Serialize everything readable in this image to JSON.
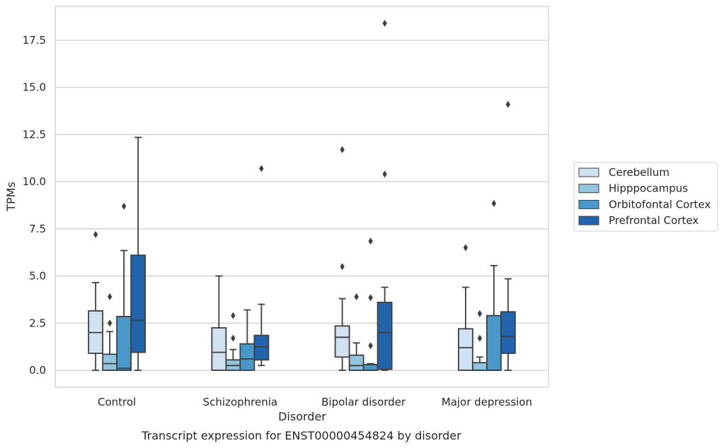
{
  "chart_data": {
    "type": "box",
    "xlabel": "Disorder",
    "ylabel": "TPMs",
    "caption": "Transcript expression for ENST00000454824 by disorder",
    "ylim": [
      -0.9,
      19.3
    ],
    "yticks": [
      "0.0",
      "2.5",
      "5.0",
      "7.5",
      "10.0",
      "12.5",
      "15.0",
      "17.5"
    ],
    "categories": [
      "Control",
      "Schizophrenia",
      "Bipolar disorder",
      "Major depression"
    ],
    "grid": "horizontal",
    "legend_position": "right",
    "series": [
      {
        "name": "Cerebellum",
        "color": "#d0e1f2",
        "boxes": [
          {
            "whislo": 0.0,
            "q1": 0.9,
            "med": 2.0,
            "q3": 3.15,
            "whishi": 4.65,
            "fliers": [
              7.2
            ]
          },
          {
            "whislo": 0.0,
            "q1": 0.0,
            "med": 0.95,
            "q3": 2.25,
            "whishi": 5.0,
            "fliers": []
          },
          {
            "whislo": 0.0,
            "q1": 0.7,
            "med": 1.75,
            "q3": 2.35,
            "whishi": 3.8,
            "fliers": [
              5.5,
              11.7
            ]
          },
          {
            "whislo": 0.0,
            "q1": 0.0,
            "med": 1.2,
            "q3": 2.2,
            "whishi": 4.4,
            "fliers": [
              6.5
            ]
          }
        ]
      },
      {
        "name": "Hipppocampus",
        "color": "#94c4df",
        "boxes": [
          {
            "whislo": 0.0,
            "q1": 0.0,
            "med": 0.35,
            "q3": 0.85,
            "whishi": 2.05,
            "fliers": [
              2.5,
              3.9
            ]
          },
          {
            "whislo": 0.0,
            "q1": 0.0,
            "med": 0.25,
            "q3": 0.55,
            "whishi": 1.1,
            "fliers": [
              1.7,
              2.9
            ]
          },
          {
            "whislo": 0.0,
            "q1": 0.0,
            "med": 0.25,
            "q3": 0.8,
            "whishi": 1.45,
            "fliers": [
              3.9
            ]
          },
          {
            "whislo": 0.0,
            "q1": 0.0,
            "med": 0.0,
            "q3": 0.4,
            "whishi": 0.7,
            "fliers": [
              1.7,
              3.0
            ]
          }
        ]
      },
      {
        "name": "Orbitofontal Cortex",
        "color": "#4a98c9",
        "boxes": [
          {
            "whislo": 0.0,
            "q1": 0.0,
            "med": 0.1,
            "q3": 2.85,
            "whishi": 6.35,
            "fliers": [
              8.7
            ]
          },
          {
            "whislo": 0.0,
            "q1": 0.0,
            "med": 0.6,
            "q3": 1.4,
            "whishi": 3.2,
            "fliers": []
          },
          {
            "whislo": 0.0,
            "q1": 0.0,
            "med": 0.0,
            "q3": 0.3,
            "whishi": 0.35,
            "fliers": [
              1.3,
              3.85,
              6.85
            ]
          },
          {
            "whislo": 0.0,
            "q1": 0.0,
            "med": 0.0,
            "q3": 2.9,
            "whishi": 5.55,
            "fliers": [
              8.85
            ]
          }
        ]
      },
      {
        "name": "Prefrontal Cortex",
        "color": "#2164ab",
        "boxes": [
          {
            "whislo": 0.0,
            "q1": 0.95,
            "med": 2.65,
            "q3": 6.1,
            "whishi": 12.35,
            "fliers": []
          },
          {
            "whislo": 0.25,
            "q1": 0.55,
            "med": 1.25,
            "q3": 1.85,
            "whishi": 3.5,
            "fliers": [
              10.7
            ]
          },
          {
            "whislo": 0.0,
            "q1": 0.05,
            "med": 2.0,
            "q3": 3.6,
            "whishi": 4.4,
            "fliers": [
              10.4,
              18.4
            ]
          },
          {
            "whislo": 0.0,
            "q1": 0.9,
            "med": 1.8,
            "q3": 3.1,
            "whishi": 4.85,
            "fliers": [
              14.1
            ]
          }
        ]
      }
    ]
  }
}
